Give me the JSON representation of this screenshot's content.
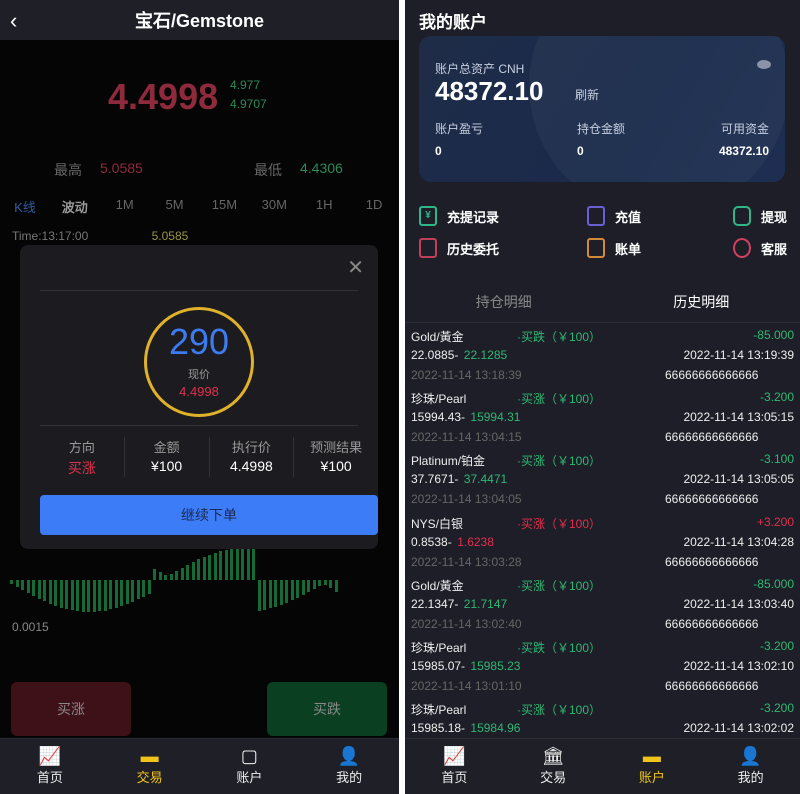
{
  "left": {
    "header": {
      "back_icon": "chevron-left-icon",
      "title": "宝石/Gemstone"
    },
    "quote": {
      "price": "4.4998",
      "sub1": "4.977",
      "sub2": "4.9707",
      "high_label": "最高",
      "high": "5.0585",
      "low_label": "最低",
      "low": "4.4306"
    },
    "chart_tabs": [
      "K线",
      "波动",
      "1M",
      "5M",
      "15M",
      "30M",
      "1H",
      "1D"
    ],
    "time_line": {
      "time": "Time:13:17:00",
      "value": "5.0585"
    },
    "macd_value": "0.0015",
    "buy_up": "买涨",
    "buy_down": "买跌",
    "modal": {
      "countdown": "290",
      "current_price_label": "现价",
      "current_price": "4.4998",
      "stats": [
        {
          "label": "方向",
          "value": "买涨"
        },
        {
          "label": "金额",
          "value": "¥100"
        },
        {
          "label": "执行价",
          "value": "4.4998"
        },
        {
          "label": "预测结果",
          "value": "¥100"
        }
      ],
      "continue_button": "继续下单"
    },
    "nav": [
      {
        "label": "首页",
        "icon": "chart-icon"
      },
      {
        "label": "交易",
        "icon": "trade-icon",
        "active": true
      },
      {
        "label": "账户",
        "icon": "wallet-icon"
      },
      {
        "label": "我的",
        "icon": "user-icon"
      }
    ]
  },
  "right": {
    "title": "我的账户",
    "card": {
      "total_label": "账户总资产 CNH",
      "total": "48372.10",
      "refresh": "刷新",
      "pl_label": "账户盈亏",
      "pl": "0",
      "pos_label": "持仓金额",
      "pos": "0",
      "avail_label": "可用资金",
      "avail": "48372.10"
    },
    "links": [
      {
        "label": "充提记录",
        "color": "#2eb88a"
      },
      {
        "label": "充值",
        "color": "#6a5fd0"
      },
      {
        "label": "提现",
        "color": "#2eb88a"
      },
      {
        "label": "历史委托",
        "color": "#c0405a"
      },
      {
        "label": "账单",
        "color": "#d08a3a"
      },
      {
        "label": "客服",
        "color": "#d04060"
      }
    ],
    "tabs": [
      "持仓明细",
      "历史明细"
    ],
    "records": [
      {
        "name": "Gold/黃金",
        "dir": "·买跌（￥100）",
        "pl": "-85.000",
        "open": "22.0885-",
        "close": "22.1285",
        "end": "2022-11-14 13:19:39",
        "start": "2022-11-14 13:18:39",
        "id": "66666666666666",
        "up": false
      },
      {
        "name": "珍珠/Pearl",
        "dir": "·买涨（￥100）",
        "pl": "-3.200",
        "open": "15994.43-",
        "close": "15994.31",
        "end": "2022-11-14 13:05:15",
        "start": "2022-11-14 13:04:15",
        "id": "66666666666666",
        "up": false
      },
      {
        "name": "Platinum/铂金",
        "dir": "·买涨（￥100）",
        "pl": "-3.100",
        "open": "37.7671-",
        "close": "37.4471",
        "end": "2022-11-14 13:05:05",
        "start": "2022-11-14 13:04:05",
        "id": "66666666666666",
        "up": false
      },
      {
        "name": "NYS/白银",
        "dir": "·买涨（￥100）",
        "pl": "+3.200",
        "open": "0.8538-",
        "close": "1.6238",
        "end": "2022-11-14 13:04:28",
        "start": "2022-11-14 13:03:28",
        "id": "66666666666666",
        "up": true
      },
      {
        "name": "Gold/黃金",
        "dir": "·买涨（￥100）",
        "pl": "-85.000",
        "open": "22.1347-",
        "close": "21.7147",
        "end": "2022-11-14 13:03:40",
        "start": "2022-11-14 13:02:40",
        "id": "66666666666666",
        "up": false
      },
      {
        "name": "珍珠/Pearl",
        "dir": "·买跌（￥100）",
        "pl": "-3.200",
        "open": "15985.07-",
        "close": "15985.23",
        "end": "2022-11-14 13:02:10",
        "start": "2022-11-14 13:01:10",
        "id": "66666666666666",
        "up": false
      },
      {
        "name": "珍珠/Pearl",
        "dir": "·买涨（￥100）",
        "pl": "-3.200",
        "open": "15985.18-",
        "close": "15984.96",
        "end": "2022-11-14 13:02:02",
        "up": false
      }
    ],
    "nav": [
      {
        "label": "首页",
        "icon": "chart-icon"
      },
      {
        "label": "交易",
        "icon": "bank-icon"
      },
      {
        "label": "账户",
        "icon": "wallet-icon",
        "active": true
      },
      {
        "label": "我的",
        "icon": "user-icon"
      }
    ]
  }
}
